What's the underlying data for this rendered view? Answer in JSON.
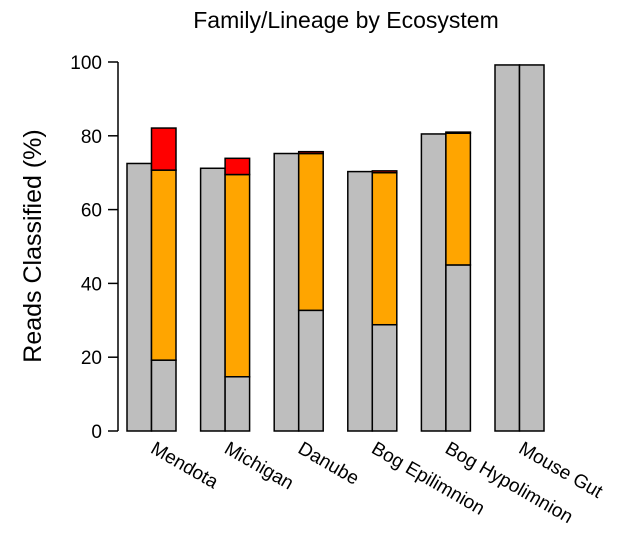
{
  "chart_data": {
    "type": "bar",
    "title": "Family/Lineage by Ecosystem",
    "xlabel": "",
    "ylabel": "Reads Classified (%)",
    "ylim": [
      0,
      100
    ],
    "yticks": [
      0,
      20,
      40,
      60,
      80,
      100
    ],
    "categories": [
      "Mendota",
      "Michigan",
      "Danube",
      "Bog Epilimnion",
      "Bog Hypolimnion",
      "Mouse Gut"
    ],
    "bars_per_category": [
      {
        "name": "left",
        "values": [
          72.5,
          71.2,
          75.2,
          70.3,
          80.5,
          99.2
        ]
      },
      {
        "name": "right",
        "stack": [
          {
            "values": [
              19.2,
              14.7,
              32.7,
              28.8,
              45.0,
              99.2
            ]
          },
          {
            "values": [
              51.5,
              54.8,
              42.5,
              41.2,
              35.7,
              0.0
            ]
          },
          {
            "values": [
              11.4,
              4.4,
              0.5,
              0.5,
              0.3,
              0.0
            ]
          }
        ]
      }
    ],
    "colors": {
      "total": "#BEBEBE",
      "base": "#BEBEBE",
      "middle": "#FFA500",
      "top": "#FF0000",
      "outline": "#000000"
    },
    "grid": false,
    "legend": "none"
  }
}
